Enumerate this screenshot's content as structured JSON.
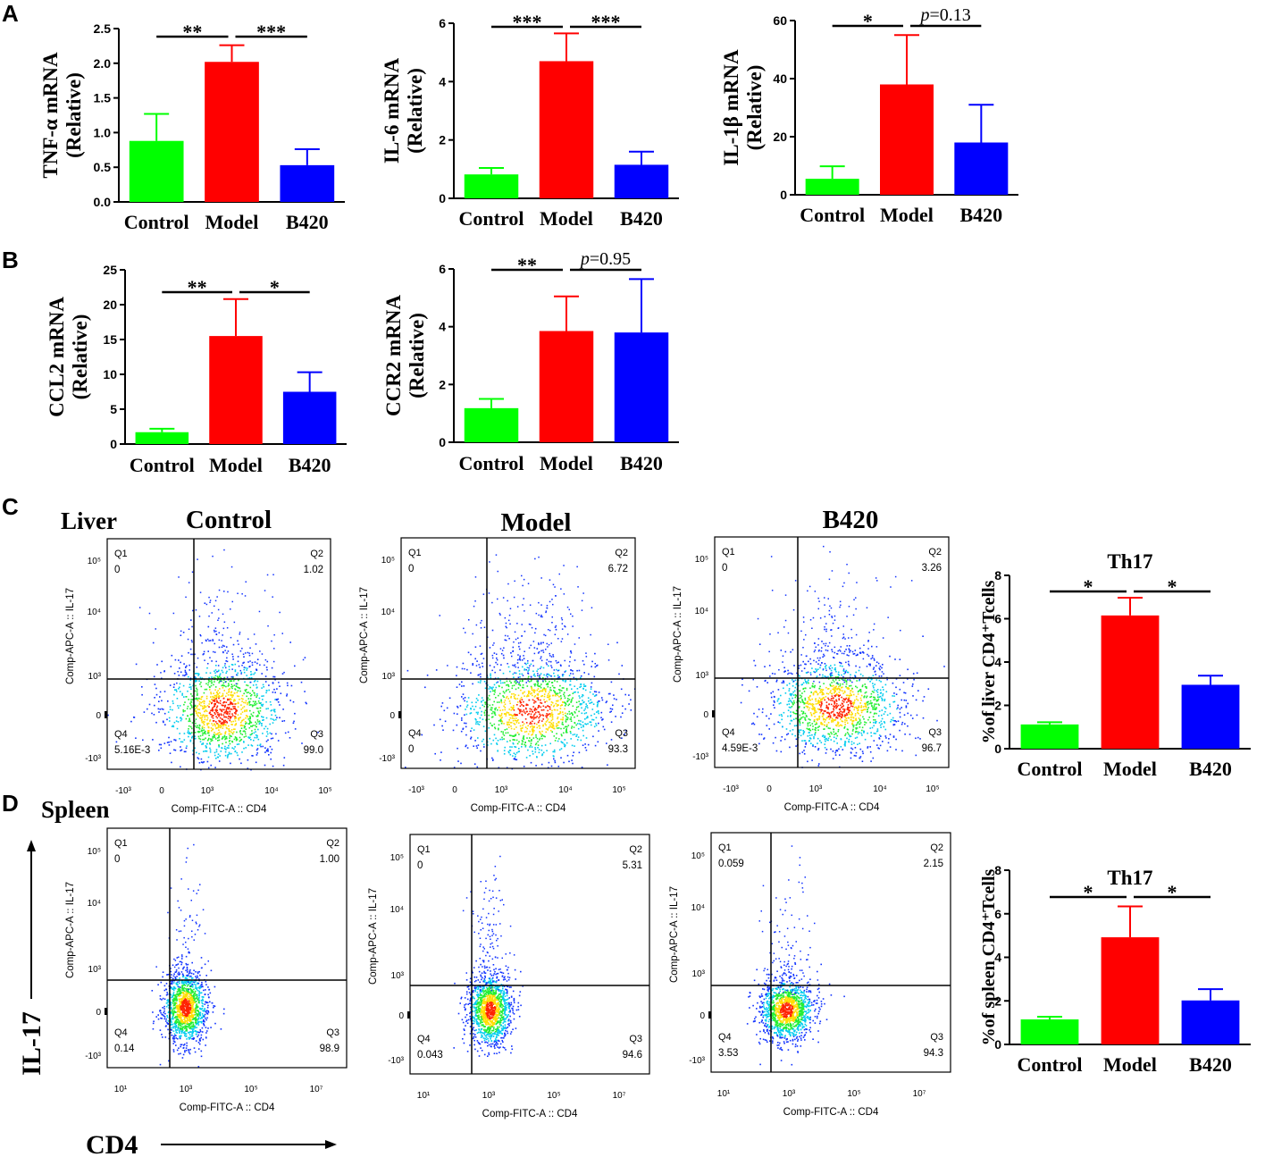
{
  "colors": {
    "control": "#00ff00",
    "model": "#ff0000",
    "b420": "#0000ff"
  },
  "panel_labels": [
    "A",
    "B",
    "C",
    "D"
  ],
  "section_labels": {
    "liver": "Liver",
    "spleen": "Spleen"
  },
  "group_titles": [
    "Control",
    "Model",
    "B420"
  ],
  "axis_arrows": {
    "y": "IL-17",
    "x": "CD4"
  },
  "chart_data": [
    {
      "id": "tnf",
      "type": "bar",
      "ylabel_line1": "TNF-α mRNA",
      "ylabel_line2": "(Relative)",
      "categories": [
        "Control",
        "Model",
        "B420"
      ],
      "values": [
        0.88,
        2.02,
        0.53
      ],
      "errors": [
        0.39,
        0.24,
        0.23
      ],
      "ylim": [
        0,
        2.5
      ],
      "ticks": [
        0.0,
        0.5,
        1.0,
        1.5,
        2.0,
        2.5
      ],
      "tick_labels": [
        "0.0",
        "0.5",
        "1.0",
        "1.5",
        "2.0",
        "2.5"
      ],
      "sig": [
        {
          "from": 0,
          "to": 1,
          "label": "**"
        },
        {
          "from": 1,
          "to": 2,
          "label": "***"
        }
      ]
    },
    {
      "id": "il6",
      "type": "bar",
      "ylabel_line1": "IL-6 mRNA",
      "ylabel_line2": "(Relative)",
      "categories": [
        "Control",
        "Model",
        "B420"
      ],
      "values": [
        0.82,
        4.7,
        1.15
      ],
      "errors": [
        0.22,
        0.95,
        0.45
      ],
      "ylim": [
        0,
        6
      ],
      "ticks": [
        0,
        2,
        4,
        6
      ],
      "tick_labels": [
        "0",
        "2",
        "4",
        "6"
      ],
      "sig": [
        {
          "from": 0,
          "to": 1,
          "label": "***"
        },
        {
          "from": 1,
          "to": 2,
          "label": "***"
        }
      ]
    },
    {
      "id": "il1b",
      "type": "bar",
      "ylabel_line1": "IL-1β mRNA",
      "ylabel_line2": "(Relative)",
      "categories": [
        "Control",
        "Model",
        "B420"
      ],
      "values": [
        5.5,
        38,
        18
      ],
      "errors": [
        4.3,
        17,
        13
      ],
      "ylim": [
        0,
        60
      ],
      "ticks": [
        0,
        20,
        40,
        60
      ],
      "tick_labels": [
        "0",
        "20",
        "40",
        "60"
      ],
      "sig": [
        {
          "from": 0,
          "to": 1,
          "label": "*"
        },
        {
          "from": 1,
          "to": 2,
          "label": "p=0.13"
        }
      ]
    },
    {
      "id": "ccl2",
      "type": "bar",
      "ylabel_line1": "CCL2 mRNA",
      "ylabel_line2": "(Relative)",
      "categories": [
        "Control",
        "Model",
        "B420"
      ],
      "values": [
        1.7,
        15.5,
        7.5
      ],
      "errors": [
        0.5,
        5.3,
        2.8
      ],
      "ylim": [
        0,
        25
      ],
      "ticks": [
        0,
        5,
        10,
        15,
        20,
        25
      ],
      "tick_labels": [
        "0",
        "5",
        "10",
        "15",
        "20",
        "25"
      ],
      "sig": [
        {
          "from": 0,
          "to": 1,
          "label": "**"
        },
        {
          "from": 1,
          "to": 2,
          "label": "*"
        }
      ]
    },
    {
      "id": "ccr2",
      "type": "bar",
      "ylabel_line1": "CCR2 mRNA",
      "ylabel_line2": "(Relative)",
      "categories": [
        "Control",
        "Model",
        "B420"
      ],
      "values": [
        1.18,
        3.85,
        3.8
      ],
      "errors": [
        0.32,
        1.2,
        1.85
      ],
      "ylim": [
        0,
        6
      ],
      "ticks": [
        0,
        2,
        4,
        6
      ],
      "tick_labels": [
        "0",
        "2",
        "4",
        "6"
      ],
      "sig": [
        {
          "from": 0,
          "to": 1,
          "label": "**"
        },
        {
          "from": 1,
          "to": 2,
          "label": "p=0.95"
        }
      ]
    },
    {
      "id": "th17_liver",
      "type": "bar",
      "title": "Th17",
      "ylabel_line1": "%of liver CD4⁺Tcells",
      "ylabel_line2": "",
      "categories": [
        "Control",
        "Model",
        "B420"
      ],
      "values": [
        1.12,
        6.15,
        2.95
      ],
      "errors": [
        0.1,
        0.82,
        0.42
      ],
      "ylim": [
        0,
        8
      ],
      "ticks": [
        0,
        2,
        4,
        6,
        8
      ],
      "tick_labels": [
        "0",
        "2",
        "4",
        "6",
        "8"
      ],
      "sig": [
        {
          "from": 0,
          "to": 1,
          "label": "*"
        },
        {
          "from": 1,
          "to": 2,
          "label": "*"
        }
      ]
    },
    {
      "id": "th17_spleen",
      "type": "bar",
      "title": "Th17",
      "ylabel_line1": "%of spleen CD4⁺Tcells",
      "ylabel_line2": "",
      "categories": [
        "Control",
        "Model",
        "B420"
      ],
      "values": [
        1.15,
        4.92,
        2.02
      ],
      "errors": [
        0.12,
        1.42,
        0.52
      ],
      "ylim": [
        0,
        8
      ],
      "ticks": [
        0,
        2,
        4,
        6,
        8
      ],
      "tick_labels": [
        "0",
        "2",
        "4",
        "6",
        "8"
      ],
      "sig": [
        {
          "from": 0,
          "to": 1,
          "label": "*"
        },
        {
          "from": 1,
          "to": 2,
          "label": "*"
        }
      ]
    },
    {
      "id": "liver_control",
      "type": "scatter",
      "ylabel": "Comp-APC-A :: IL-17",
      "xlabel": "Comp-FITC-A :: CD4",
      "x_ticks": [
        "-10³",
        "0",
        "10³",
        "10⁴",
        "10⁵"
      ],
      "y_ticks": [
        "10⁵",
        "10⁴",
        "10³",
        "0",
        "-10³"
      ],
      "quadrants": [
        {
          "name": "Q1",
          "value": "0"
        },
        {
          "name": "Q2",
          "value": "1.02"
        },
        {
          "name": "Q3",
          "value": "99.0"
        },
        {
          "name": "Q4",
          "value": "5.16E-3"
        }
      ]
    },
    {
      "id": "liver_model",
      "type": "scatter",
      "ylabel": "Comp-APC-A :: IL-17",
      "xlabel": "Comp-FITC-A :: CD4",
      "x_ticks": [
        "-10³",
        "0",
        "10³",
        "10⁴",
        "10⁵"
      ],
      "y_ticks": [
        "10⁵",
        "10⁴",
        "10³",
        "0",
        "-10³"
      ],
      "quadrants": [
        {
          "name": "Q1",
          "value": "0"
        },
        {
          "name": "Q2",
          "value": "6.72"
        },
        {
          "name": "Q3",
          "value": "93.3"
        },
        {
          "name": "Q4",
          "value": "0"
        }
      ]
    },
    {
      "id": "liver_b420",
      "type": "scatter",
      "ylabel": "Comp-APC-A :: IL-17",
      "xlabel": "Comp-FITC-A :: CD4",
      "x_ticks": [
        "-10³",
        "0",
        "10³",
        "10⁴",
        "10⁵"
      ],
      "y_ticks": [
        "10⁵",
        "10⁴",
        "10³",
        "0",
        "-10³"
      ],
      "quadrants": [
        {
          "name": "Q1",
          "value": "0"
        },
        {
          "name": "Q2",
          "value": "3.26"
        },
        {
          "name": "Q3",
          "value": "96.7"
        },
        {
          "name": "Q4",
          "value": "4.59E-3"
        }
      ]
    },
    {
      "id": "spleen_control",
      "type": "scatter",
      "ylabel": "Comp-APC-A :: IL-17",
      "xlabel": "Comp-FITC-A :: CD4",
      "x_ticks": [
        "10¹",
        "10³",
        "10⁵",
        "10⁷"
      ],
      "y_ticks": [
        "10⁵",
        "10⁴",
        "10³",
        "0",
        "-10³"
      ],
      "quadrants": [
        {
          "name": "Q1",
          "value": "0"
        },
        {
          "name": "Q2",
          "value": "1.00"
        },
        {
          "name": "Q3",
          "value": "98.9"
        },
        {
          "name": "Q4",
          "value": "0.14"
        }
      ]
    },
    {
      "id": "spleen_model",
      "type": "scatter",
      "ylabel": "Comp-APC-A :: IL-17",
      "xlabel": "Comp-FITC-A :: CD4",
      "x_ticks": [
        "10¹",
        "10³",
        "10⁵",
        "10⁷"
      ],
      "y_ticks": [
        "10⁵",
        "10⁴",
        "10³",
        "0",
        "-10³"
      ],
      "quadrants": [
        {
          "name": "Q1",
          "value": "0"
        },
        {
          "name": "Q2",
          "value": "5.31"
        },
        {
          "name": "Q3",
          "value": "94.6"
        },
        {
          "name": "Q4",
          "value": "0.043"
        }
      ]
    },
    {
      "id": "spleen_b420",
      "type": "scatter",
      "ylabel": "Comp-APC-A :: IL-17",
      "xlabel": "Comp-FITC-A :: CD4",
      "x_ticks": [
        "10¹",
        "10³",
        "10⁵",
        "10⁷"
      ],
      "y_ticks": [
        "10⁵",
        "10⁴",
        "10³",
        "0",
        "-10³"
      ],
      "quadrants": [
        {
          "name": "Q1",
          "value": "0.059"
        },
        {
          "name": "Q2",
          "value": "2.15"
        },
        {
          "name": "Q3",
          "value": "94.3"
        },
        {
          "name": "Q4",
          "value": "3.53"
        }
      ]
    }
  ]
}
